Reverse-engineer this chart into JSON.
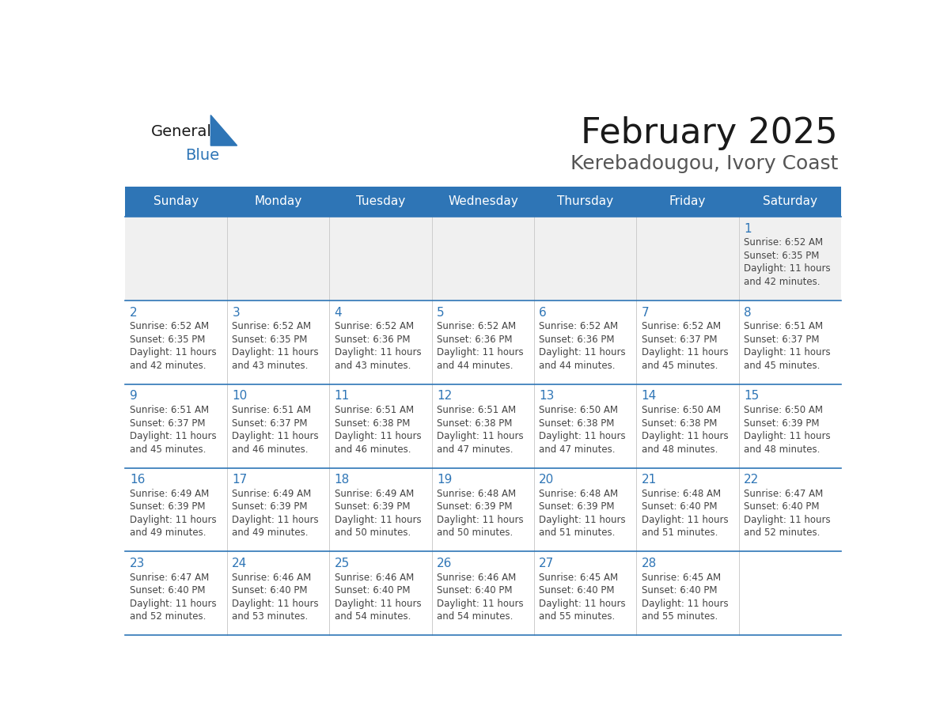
{
  "title": "February 2025",
  "subtitle": "Kerebadougou, Ivory Coast",
  "header_bg": "#2E75B6",
  "header_text_color": "#FFFFFF",
  "cell_bg_gray": "#F0F0F0",
  "cell_bg_white": "#FFFFFF",
  "grid_line_color": "#2E75B6",
  "vert_line_color": "#CCCCCC",
  "day_headers": [
    "Sunday",
    "Monday",
    "Tuesday",
    "Wednesday",
    "Thursday",
    "Friday",
    "Saturday"
  ],
  "title_color": "#1A1A1A",
  "subtitle_color": "#555555",
  "day_num_color": "#2E75B6",
  "cell_text_color": "#444444",
  "logo_general_color": "#1A1A1A",
  "logo_blue_color": "#2E75B6",
  "weeks": [
    [
      {
        "day": 0,
        "info": ""
      },
      {
        "day": 0,
        "info": ""
      },
      {
        "day": 0,
        "info": ""
      },
      {
        "day": 0,
        "info": ""
      },
      {
        "day": 0,
        "info": ""
      },
      {
        "day": 0,
        "info": ""
      },
      {
        "day": 1,
        "info": "Sunrise: 6:52 AM\nSunset: 6:35 PM\nDaylight: 11 hours\nand 42 minutes."
      }
    ],
    [
      {
        "day": 2,
        "info": "Sunrise: 6:52 AM\nSunset: 6:35 PM\nDaylight: 11 hours\nand 42 minutes."
      },
      {
        "day": 3,
        "info": "Sunrise: 6:52 AM\nSunset: 6:35 PM\nDaylight: 11 hours\nand 43 minutes."
      },
      {
        "day": 4,
        "info": "Sunrise: 6:52 AM\nSunset: 6:36 PM\nDaylight: 11 hours\nand 43 minutes."
      },
      {
        "day": 5,
        "info": "Sunrise: 6:52 AM\nSunset: 6:36 PM\nDaylight: 11 hours\nand 44 minutes."
      },
      {
        "day": 6,
        "info": "Sunrise: 6:52 AM\nSunset: 6:36 PM\nDaylight: 11 hours\nand 44 minutes."
      },
      {
        "day": 7,
        "info": "Sunrise: 6:52 AM\nSunset: 6:37 PM\nDaylight: 11 hours\nand 45 minutes."
      },
      {
        "day": 8,
        "info": "Sunrise: 6:51 AM\nSunset: 6:37 PM\nDaylight: 11 hours\nand 45 minutes."
      }
    ],
    [
      {
        "day": 9,
        "info": "Sunrise: 6:51 AM\nSunset: 6:37 PM\nDaylight: 11 hours\nand 45 minutes."
      },
      {
        "day": 10,
        "info": "Sunrise: 6:51 AM\nSunset: 6:37 PM\nDaylight: 11 hours\nand 46 minutes."
      },
      {
        "day": 11,
        "info": "Sunrise: 6:51 AM\nSunset: 6:38 PM\nDaylight: 11 hours\nand 46 minutes."
      },
      {
        "day": 12,
        "info": "Sunrise: 6:51 AM\nSunset: 6:38 PM\nDaylight: 11 hours\nand 47 minutes."
      },
      {
        "day": 13,
        "info": "Sunrise: 6:50 AM\nSunset: 6:38 PM\nDaylight: 11 hours\nand 47 minutes."
      },
      {
        "day": 14,
        "info": "Sunrise: 6:50 AM\nSunset: 6:38 PM\nDaylight: 11 hours\nand 48 minutes."
      },
      {
        "day": 15,
        "info": "Sunrise: 6:50 AM\nSunset: 6:39 PM\nDaylight: 11 hours\nand 48 minutes."
      }
    ],
    [
      {
        "day": 16,
        "info": "Sunrise: 6:49 AM\nSunset: 6:39 PM\nDaylight: 11 hours\nand 49 minutes."
      },
      {
        "day": 17,
        "info": "Sunrise: 6:49 AM\nSunset: 6:39 PM\nDaylight: 11 hours\nand 49 minutes."
      },
      {
        "day": 18,
        "info": "Sunrise: 6:49 AM\nSunset: 6:39 PM\nDaylight: 11 hours\nand 50 minutes."
      },
      {
        "day": 19,
        "info": "Sunrise: 6:48 AM\nSunset: 6:39 PM\nDaylight: 11 hours\nand 50 minutes."
      },
      {
        "day": 20,
        "info": "Sunrise: 6:48 AM\nSunset: 6:39 PM\nDaylight: 11 hours\nand 51 minutes."
      },
      {
        "day": 21,
        "info": "Sunrise: 6:48 AM\nSunset: 6:40 PM\nDaylight: 11 hours\nand 51 minutes."
      },
      {
        "day": 22,
        "info": "Sunrise: 6:47 AM\nSunset: 6:40 PM\nDaylight: 11 hours\nand 52 minutes."
      }
    ],
    [
      {
        "day": 23,
        "info": "Sunrise: 6:47 AM\nSunset: 6:40 PM\nDaylight: 11 hours\nand 52 minutes."
      },
      {
        "day": 24,
        "info": "Sunrise: 6:46 AM\nSunset: 6:40 PM\nDaylight: 11 hours\nand 53 minutes."
      },
      {
        "day": 25,
        "info": "Sunrise: 6:46 AM\nSunset: 6:40 PM\nDaylight: 11 hours\nand 54 minutes."
      },
      {
        "day": 26,
        "info": "Sunrise: 6:46 AM\nSunset: 6:40 PM\nDaylight: 11 hours\nand 54 minutes."
      },
      {
        "day": 27,
        "info": "Sunrise: 6:45 AM\nSunset: 6:40 PM\nDaylight: 11 hours\nand 55 minutes."
      },
      {
        "day": 28,
        "info": "Sunrise: 6:45 AM\nSunset: 6:40 PM\nDaylight: 11 hours\nand 55 minutes."
      },
      {
        "day": 0,
        "info": ""
      }
    ]
  ]
}
